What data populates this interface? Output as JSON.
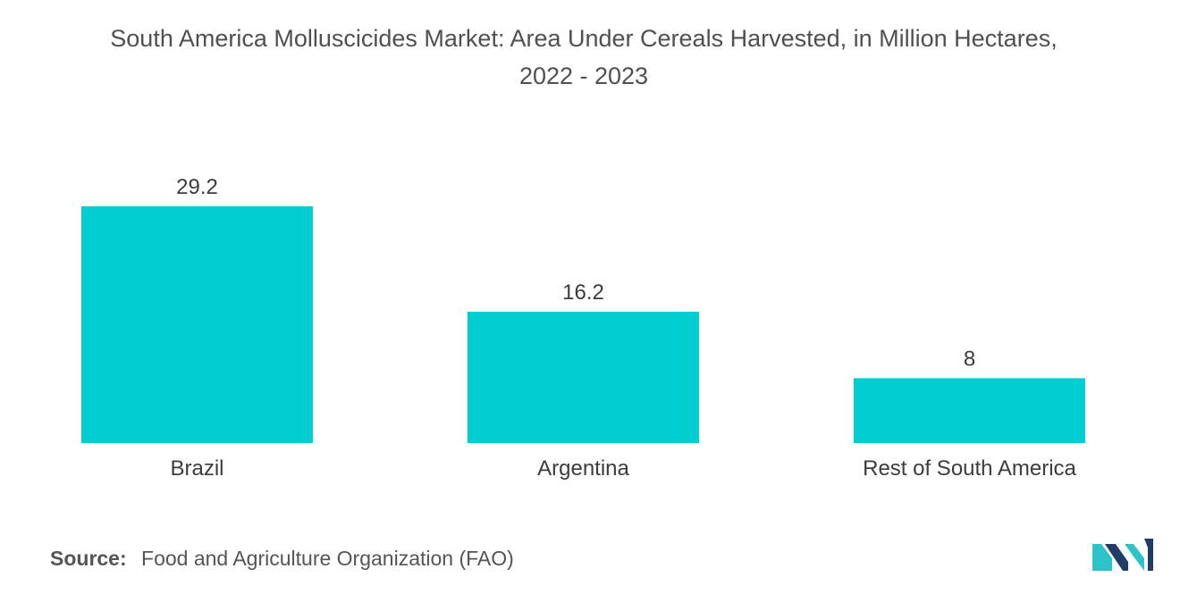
{
  "chart_data": {
    "type": "bar",
    "title": "South America Molluscicides Market: Area Under Cereals Harvested, in Million Hectares,",
    "subtitle": "2022 - 2023",
    "categories": [
      "Brazil",
      "Argentina",
      "Rest of South America"
    ],
    "values": [
      29.2,
      16.2,
      8
    ],
    "value_labels": [
      "29.2",
      "16.2",
      "8"
    ],
    "xlabel": "",
    "ylabel": "",
    "ylim": [
      0,
      29.2
    ],
    "grid": false,
    "legend": "none",
    "bar_color": "#00ced1"
  },
  "source": {
    "label": "Source:",
    "text": "Food and Agriculture Organization (FAO)"
  },
  "colors": {
    "bar": "#00ced1",
    "logo_dark": "#1f3d66",
    "logo_light": "#2cc4c8"
  },
  "logo_icon": "mordor-intelligence-logo"
}
